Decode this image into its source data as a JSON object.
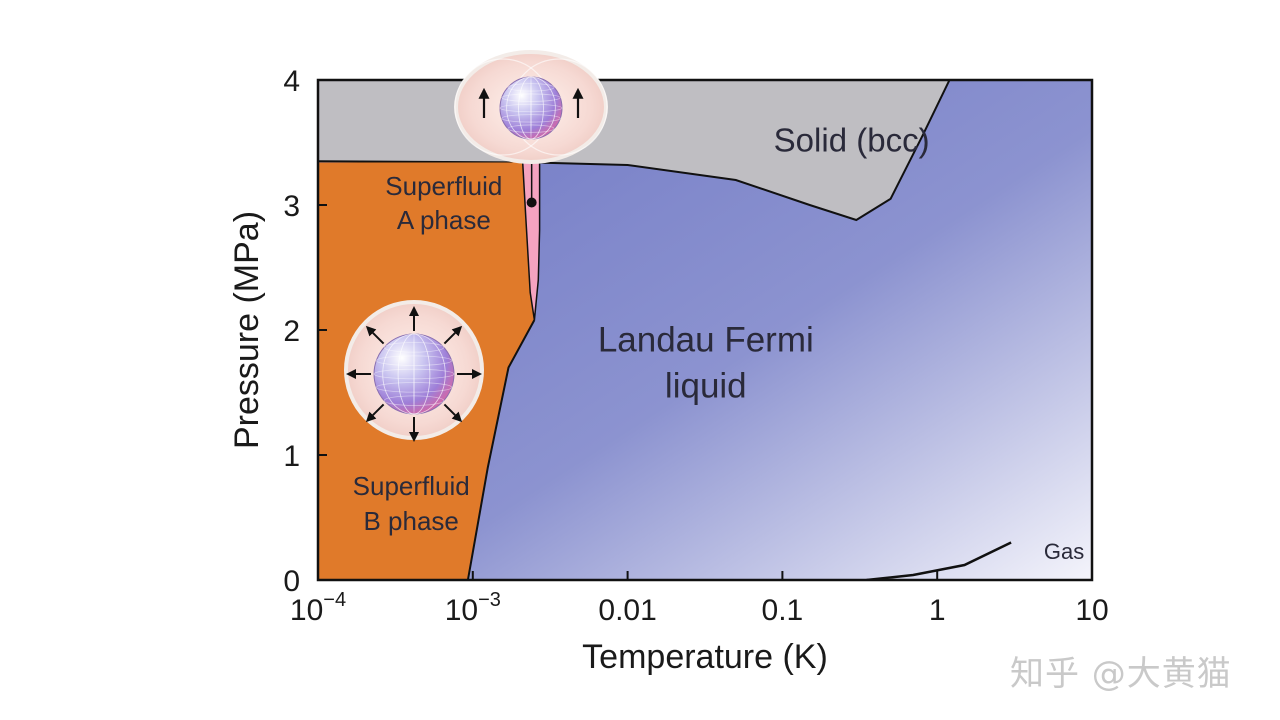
{
  "chart_data": {
    "type": "area",
    "xlabel": "Temperature (K)",
    "ylabel": "Pressure (MPa)",
    "xscale": "log",
    "xlim": [
      0.0001,
      10
    ],
    "ylim": [
      0,
      4
    ],
    "x_ticks": [
      {
        "value": 0.0001,
        "base": "10",
        "exp": "−4"
      },
      {
        "value": 0.001,
        "base": "10",
        "exp": "−3"
      },
      {
        "value": 0.01,
        "label": "0.01"
      },
      {
        "value": 0.1,
        "label": "0.1"
      },
      {
        "value": 1,
        "label": "1"
      },
      {
        "value": 10,
        "label": "10"
      }
    ],
    "y_ticks": [
      0,
      1,
      2,
      3,
      4
    ],
    "regions": [
      {
        "name": "solid",
        "label": [
          "Solid (bcc)"
        ],
        "color": "#bfbec2",
        "boundary": [
          [
            0.0001,
            3.35
          ],
          [
            0.0025,
            3.34
          ],
          [
            0.01,
            3.32
          ],
          [
            0.05,
            3.2
          ],
          [
            0.15,
            3.0
          ],
          [
            0.3,
            2.88
          ],
          [
            0.5,
            3.05
          ],
          [
            0.8,
            3.55
          ],
          [
            1.2,
            4.0
          ]
        ]
      },
      {
        "name": "superfluid-a",
        "label": [
          "Superfluid",
          "A phase"
        ],
        "color": "#f4a3c0",
        "boundary_left": [
          [
            0.0021,
            3.34
          ],
          [
            0.0022,
            2.9
          ],
          [
            0.00235,
            2.3
          ],
          [
            0.0025,
            2.08
          ]
        ],
        "boundary_right": [
          [
            0.0027,
            3.34
          ],
          [
            0.0027,
            2.8
          ],
          [
            0.00265,
            2.4
          ],
          [
            0.0025,
            2.08
          ]
        ]
      },
      {
        "name": "superfluid-b",
        "label": [
          "Superfluid",
          "B phase"
        ],
        "color": "#e07a2a",
        "boundary": [
          [
            0.00093,
            0.0
          ],
          [
            0.00125,
            0.9
          ],
          [
            0.0017,
            1.7
          ],
          [
            0.0025,
            2.08
          ],
          [
            0.0022,
            2.9
          ],
          [
            0.0021,
            3.34
          ]
        ]
      },
      {
        "name": "landau-fermi-liquid",
        "label": [
          "Landau Fermi",
          "liquid"
        ],
        "color": "#7a82c8"
      },
      {
        "name": "gas",
        "label": [
          "Gas"
        ],
        "color": "#ffffff",
        "boundary": [
          [
            0.35,
            0.0
          ],
          [
            0.7,
            0.04
          ],
          [
            1.5,
            0.12
          ],
          [
            3.0,
            0.3
          ]
        ]
      }
    ],
    "annotations": [
      {
        "name": "a-phase-marker-dot",
        "x": 0.0024,
        "y": 3.02
      }
    ]
  },
  "watermark": "知乎 @大黄猫"
}
